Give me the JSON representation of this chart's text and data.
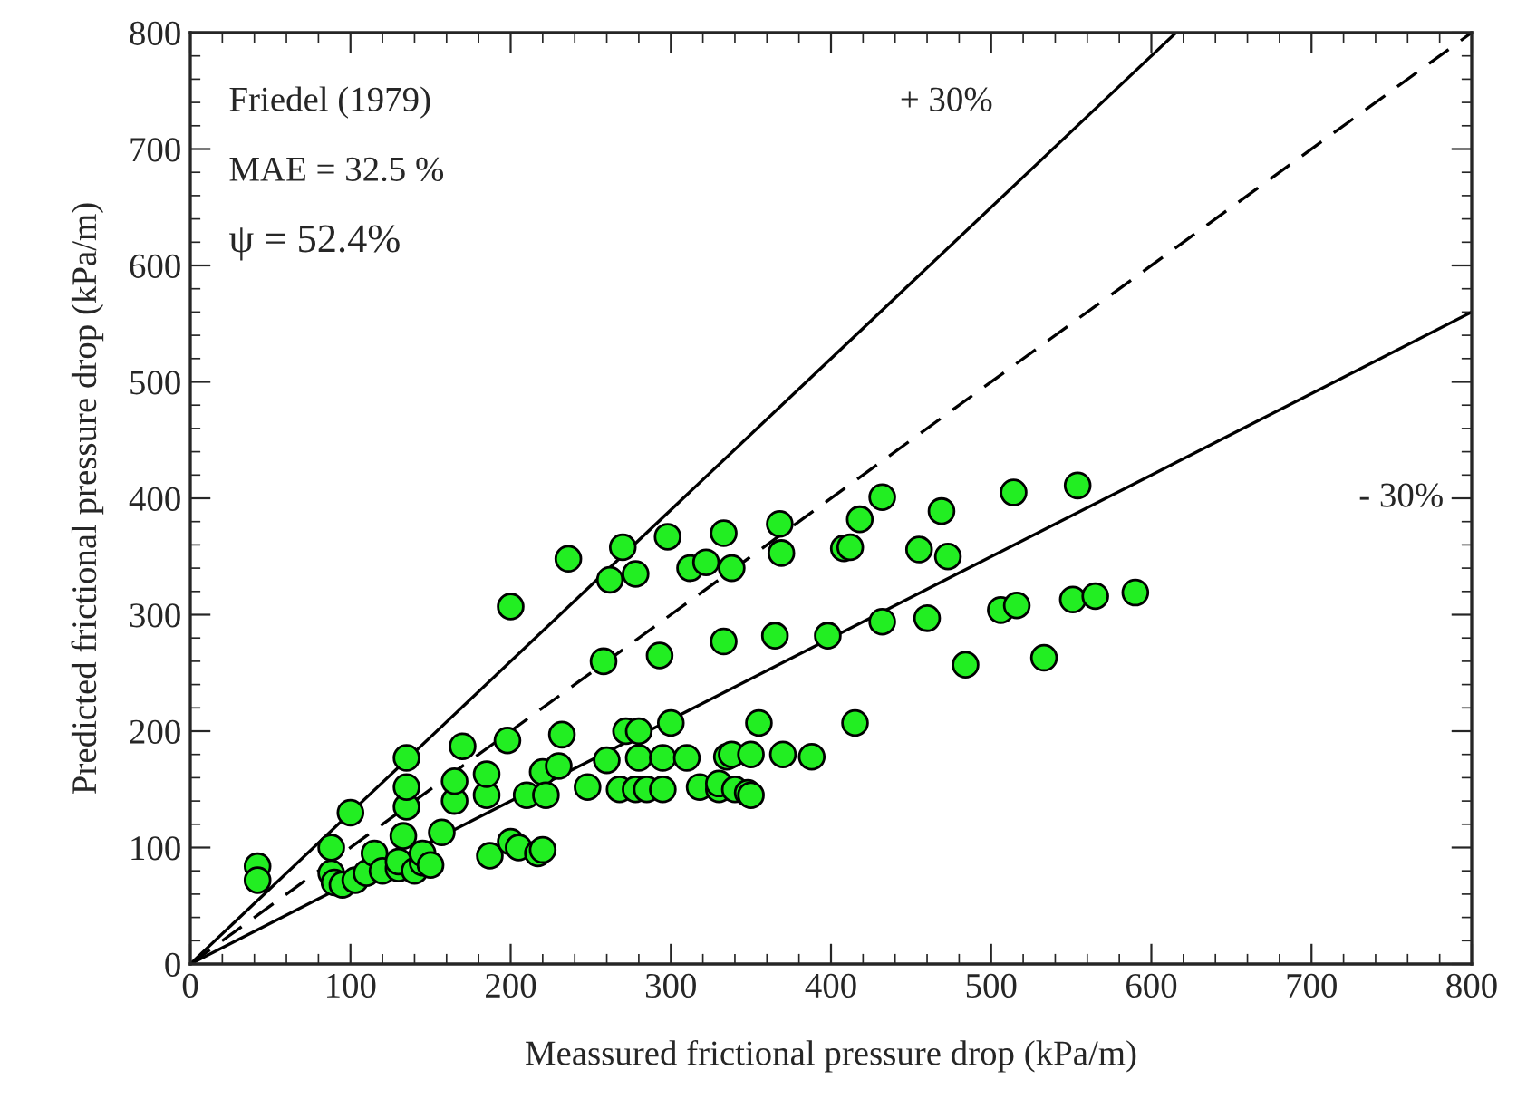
{
  "chart_data": {
    "type": "scatter",
    "xlabel": "Meassured frictional pressure drop (kPa/m)",
    "ylabel": "Predicted frictional pressure drop (kPa/m)",
    "xlim": [
      0,
      800
    ],
    "ylim": [
      0,
      800
    ],
    "xticks": [
      0,
      100,
      200,
      300,
      400,
      500,
      600,
      700,
      800
    ],
    "yticks": [
      0,
      100,
      200,
      300,
      400,
      500,
      600,
      700,
      800
    ],
    "grid": false,
    "legend": false,
    "annotations": [
      "Friedel (1979)",
      "MAE = 32.5 %",
      "ψ = 52.4%",
      "+ 30%",
      "- 30%"
    ],
    "series": [
      {
        "marker": "circle",
        "color": "#22ee22",
        "x": [
          42,
          42,
          88,
          88,
          90,
          95,
          100,
          103,
          110,
          115,
          120,
          130,
          130,
          133,
          135,
          135,
          135,
          140,
          145,
          145,
          150,
          157,
          165,
          165,
          170,
          185,
          185,
          187,
          198,
          200,
          200,
          205,
          210,
          217,
          220,
          220,
          222,
          230,
          232,
          236,
          248,
          258,
          260,
          262,
          268,
          270,
          272,
          278,
          278,
          280,
          280,
          285,
          293,
          295,
          295,
          298,
          300,
          310,
          312,
          318,
          322,
          330,
          330,
          333,
          333,
          335,
          338,
          338,
          340,
          348,
          350,
          350,
          355,
          365,
          368,
          370,
          369,
          388,
          398,
          408,
          412,
          415,
          418,
          432,
          432,
          455,
          460,
          469,
          473,
          484,
          506,
          514,
          516,
          533,
          551,
          554,
          565,
          590
        ],
        "values": [
          84,
          72,
          100,
          78,
          70,
          68,
          130,
          72,
          78,
          95,
          80,
          82,
          88,
          110,
          135,
          152,
          177,
          80,
          87,
          95,
          85,
          113,
          140,
          157,
          187,
          145,
          163,
          93,
          192,
          307,
          105,
          100,
          145,
          95,
          98,
          165,
          145,
          170,
          197,
          348,
          152,
          260,
          175,
          330,
          150,
          358,
          200,
          150,
          335,
          200,
          177,
          150,
          265,
          150,
          177,
          367,
          207,
          177,
          340,
          152,
          345,
          150,
          155,
          370,
          277,
          178,
          180,
          340,
          150,
          147,
          180,
          145,
          207,
          282,
          378,
          180,
          353,
          178,
          282,
          357,
          358,
          207,
          382,
          294,
          401,
          356,
          297,
          389,
          350,
          257,
          304,
          405,
          308,
          263,
          313,
          411,
          316,
          319
        ]
      },
      {
        "type": "line",
        "marker": "none",
        "color": "#000000",
        "line_style": "solid",
        "x": [
          0,
          615.4
        ],
        "values": [
          0,
          800
        ]
      },
      {
        "type": "line",
        "marker": "none",
        "color": "#000000",
        "line_style": "dashed",
        "x": [
          0,
          800
        ],
        "values": [
          0,
          800
        ]
      },
      {
        "type": "line",
        "marker": "none",
        "color": "#000000",
        "line_style": "solid",
        "x": [
          0,
          800
        ],
        "values": [
          0,
          560
        ]
      }
    ]
  }
}
